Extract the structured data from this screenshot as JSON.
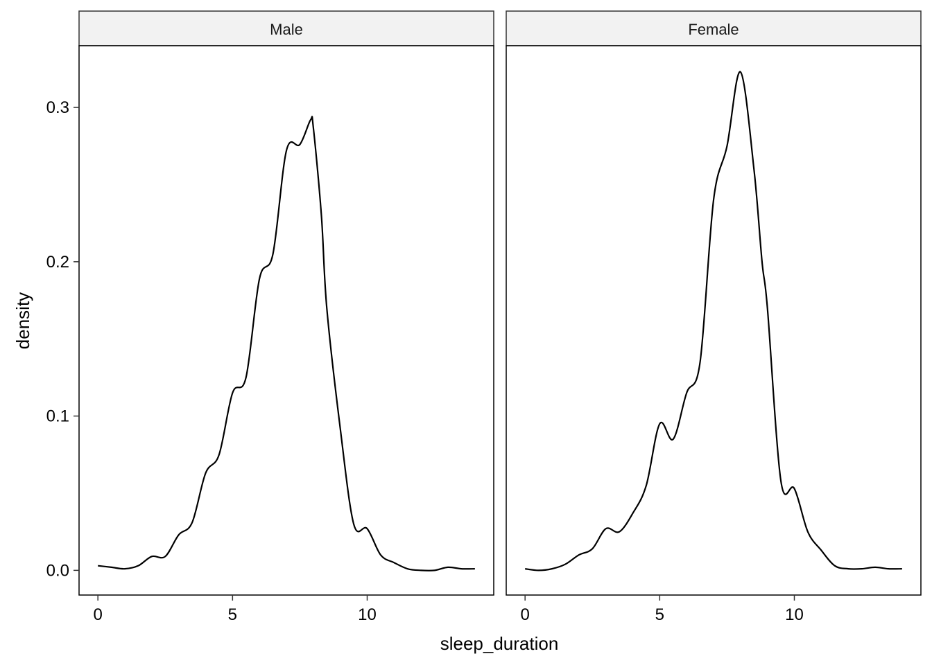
{
  "chart_data": {
    "type": "line",
    "facet_variable": "gender",
    "xlabel": "sleep_duration",
    "ylabel": "density",
    "xlim": [
      -0.7,
      14.7
    ],
    "ylim": [
      -0.016,
      0.34
    ],
    "x_ticks": [
      0,
      5,
      10
    ],
    "y_ticks": [
      0.0,
      0.1,
      0.2,
      0.3
    ],
    "x_tick_labels": [
      "0",
      "5",
      "10"
    ],
    "y_tick_labels": [
      "0.0",
      "0.1",
      "0.2",
      "0.3"
    ],
    "grid": false,
    "line_color": "#000000",
    "strip_fill": "#f2f2f2",
    "panels": [
      {
        "name": "Male",
        "points": [
          [
            0.0,
            0.003
          ],
          [
            0.5,
            0.002
          ],
          [
            1.0,
            0.001
          ],
          [
            1.5,
            0.003
          ],
          [
            2.0,
            0.009
          ],
          [
            2.5,
            0.009
          ],
          [
            3.0,
            0.023
          ],
          [
            3.5,
            0.031
          ],
          [
            4.0,
            0.063
          ],
          [
            4.5,
            0.075
          ],
          [
            5.0,
            0.115
          ],
          [
            5.5,
            0.125
          ],
          [
            6.0,
            0.189
          ],
          [
            6.5,
            0.205
          ],
          [
            7.0,
            0.272
          ],
          [
            7.5,
            0.276
          ],
          [
            7.9,
            0.292
          ],
          [
            8.0,
            0.287
          ],
          [
            8.3,
            0.23
          ],
          [
            8.5,
            0.17
          ],
          [
            9.0,
            0.092
          ],
          [
            9.5,
            0.03
          ],
          [
            10.0,
            0.027
          ],
          [
            10.5,
            0.01
          ],
          [
            11.0,
            0.005
          ],
          [
            11.5,
            0.001
          ],
          [
            12.0,
            0.0
          ],
          [
            12.5,
            0.0
          ],
          [
            13.0,
            0.002
          ],
          [
            13.5,
            0.001
          ],
          [
            14.0,
            0.001
          ]
        ]
      },
      {
        "name": "Female",
        "points": [
          [
            0.0,
            0.001
          ],
          [
            0.5,
            0.0
          ],
          [
            1.0,
            0.001
          ],
          [
            1.5,
            0.004
          ],
          [
            2.0,
            0.01
          ],
          [
            2.5,
            0.014
          ],
          [
            3.0,
            0.027
          ],
          [
            3.5,
            0.025
          ],
          [
            4.0,
            0.037
          ],
          [
            4.5,
            0.055
          ],
          [
            5.0,
            0.095
          ],
          [
            5.5,
            0.085
          ],
          [
            6.0,
            0.115
          ],
          [
            6.5,
            0.135
          ],
          [
            7.0,
            0.24
          ],
          [
            7.5,
            0.275
          ],
          [
            8.0,
            0.323
          ],
          [
            8.5,
            0.26
          ],
          [
            8.8,
            0.2
          ],
          [
            9.0,
            0.17
          ],
          [
            9.5,
            0.058
          ],
          [
            10.0,
            0.053
          ],
          [
            10.5,
            0.025
          ],
          [
            11.0,
            0.013
          ],
          [
            11.5,
            0.003
          ],
          [
            12.0,
            0.001
          ],
          [
            12.5,
            0.001
          ],
          [
            13.0,
            0.002
          ],
          [
            13.5,
            0.001
          ],
          [
            14.0,
            0.001
          ]
        ]
      }
    ]
  }
}
